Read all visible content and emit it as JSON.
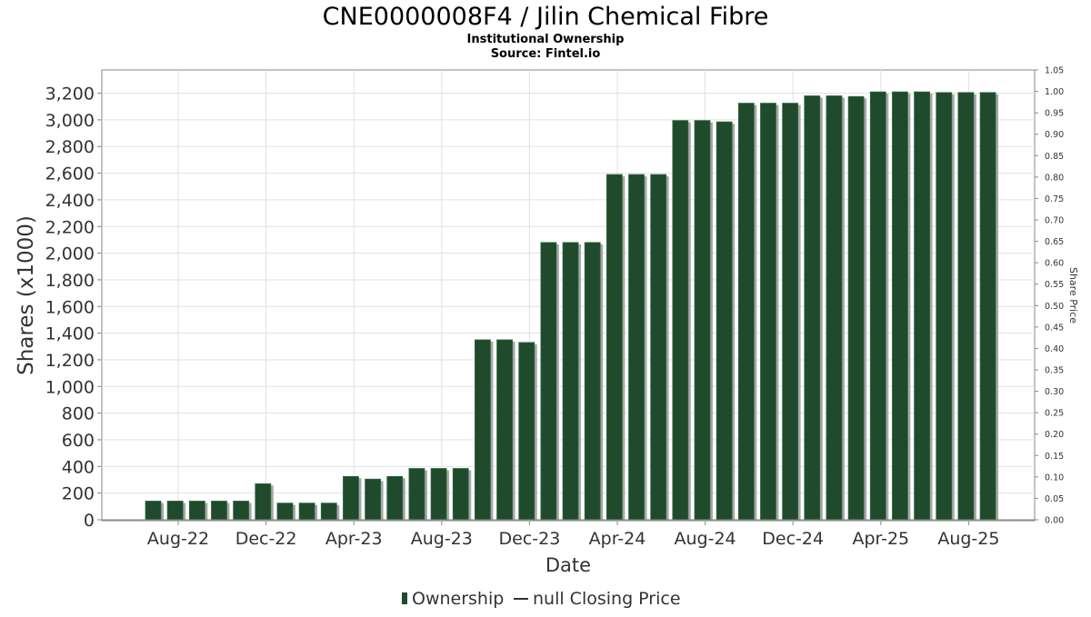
{
  "chart_data": {
    "type": "bar",
    "title": "CNE0000008F4 / Jilin Chemical Fibre",
    "subtitle_1": "Institutional Ownership",
    "subtitle_2": "Source: Fintel.io",
    "xlabel": "Date",
    "ylabel": "Shares (x1000)",
    "y2label": "Share Price",
    "ylim": [
      0,
      3400
    ],
    "y_ticks": [
      0,
      200,
      400,
      600,
      800,
      1000,
      1200,
      1400,
      1600,
      1800,
      2000,
      2200,
      2400,
      2600,
      2800,
      3000,
      3200
    ],
    "y_tick_labels": [
      "0",
      "200",
      "400",
      "600",
      "800",
      "1,000",
      "1,200",
      "1,400",
      "1,600",
      "1,800",
      "2,000",
      "2,200",
      "2,400",
      "2,600",
      "2,800",
      "3,000",
      "3,200"
    ],
    "y2lim": [
      0,
      1.05
    ],
    "y2_tick_labels": [
      "0.00",
      "0.05",
      "0.10",
      "0.15",
      "0.20",
      "0.25",
      "0.30",
      "0.35",
      "0.40",
      "0.45",
      "0.50",
      "0.55",
      "0.60",
      "0.65",
      "0.70",
      "0.75",
      "0.80",
      "0.85",
      "0.90",
      "0.95",
      "1.00",
      "1.05"
    ],
    "x_tick_labels": [
      "Aug-22",
      "Dec-22",
      "Apr-23",
      "Aug-23",
      "Dec-23",
      "Apr-24",
      "Aug-24",
      "Dec-24",
      "Apr-25",
      "Aug-25"
    ],
    "grid": true,
    "legend_position": "bottom-center",
    "series": [
      {
        "name": "Ownership",
        "color": "#1f4a2c",
        "values": [
          140,
          140,
          140,
          140,
          140,
          270,
          125,
          125,
          125,
          325,
          305,
          325,
          385,
          385,
          385,
          1350,
          1350,
          1330,
          2080,
          2080,
          2080,
          2590,
          2590,
          2590,
          2995,
          2995,
          2985,
          3125,
          3125,
          3125,
          3180,
          3180,
          3175,
          3210,
          3210,
          3210,
          3205,
          3205,
          3205
        ]
      },
      {
        "name": "null Closing Price",
        "color": "#333333",
        "values": []
      }
    ]
  }
}
